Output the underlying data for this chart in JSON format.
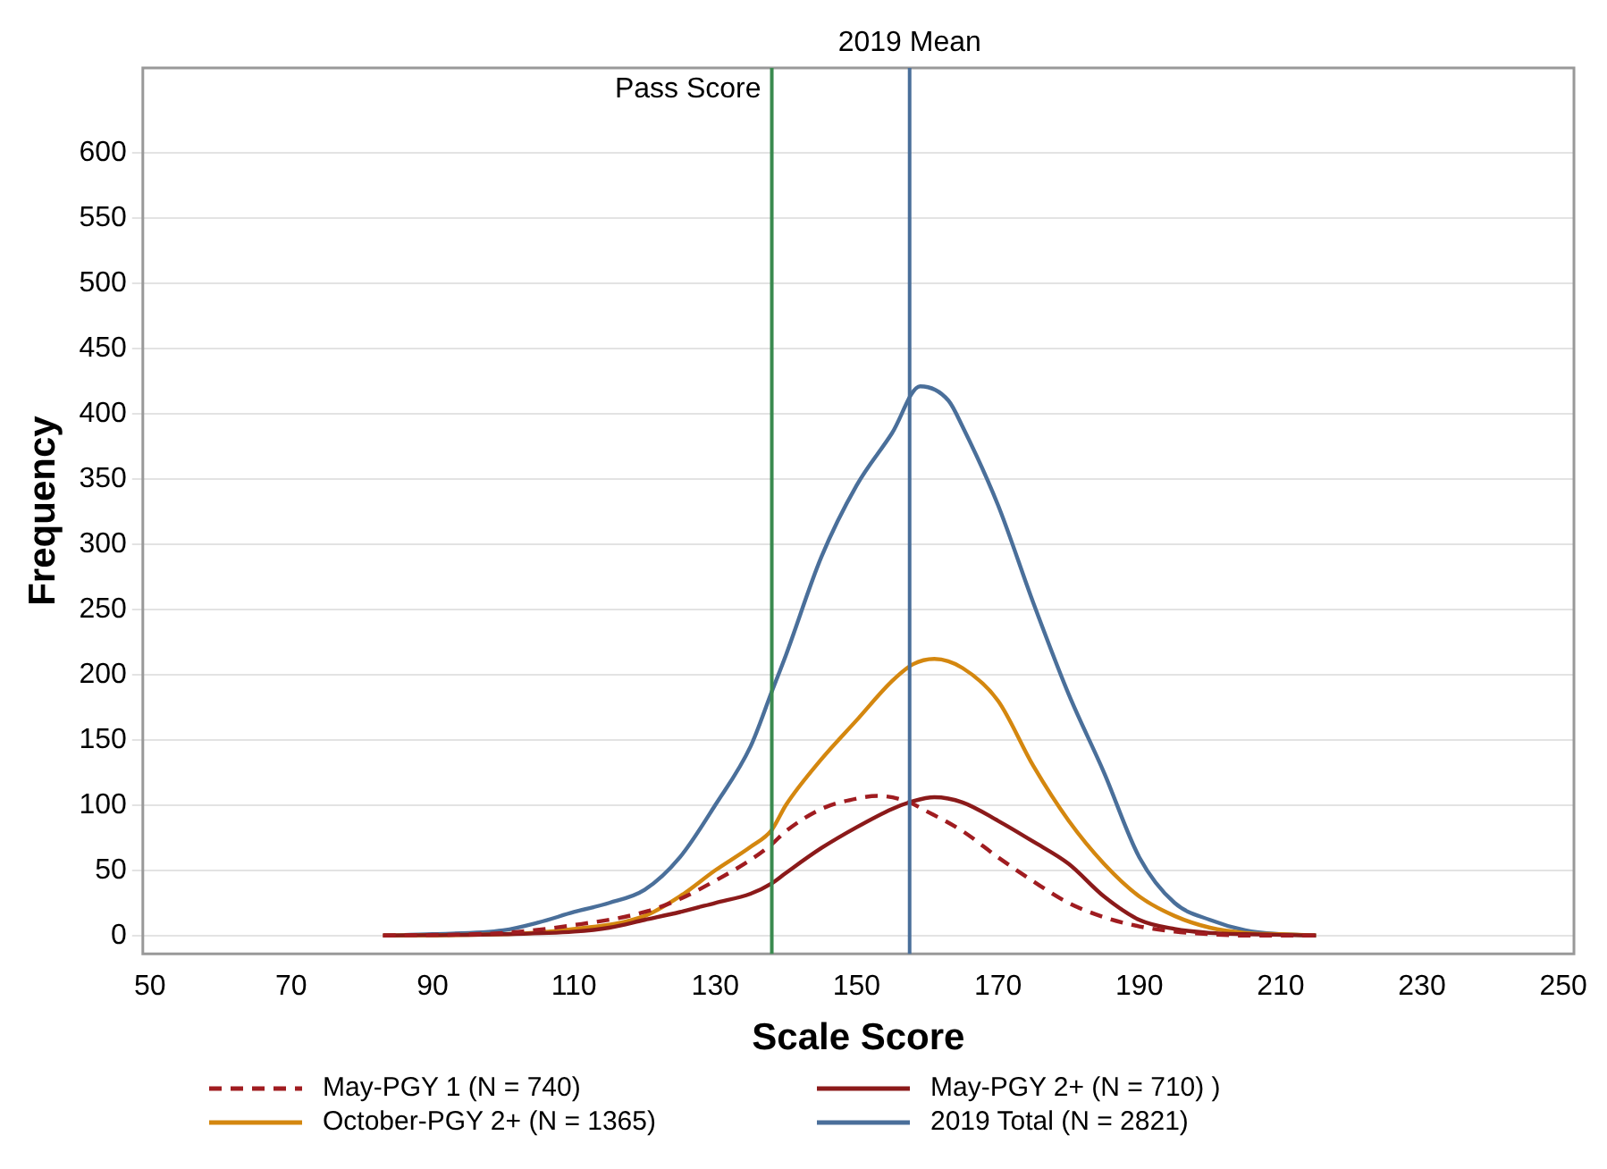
{
  "chart_data": {
    "type": "line",
    "xlabel": "Scale Score",
    "ylabel": "Frequency",
    "xlim": [
      49,
      251.5
    ],
    "ylim": [
      -14,
      665
    ],
    "xticks": [
      50,
      70,
      90,
      110,
      130,
      150,
      170,
      190,
      210,
      230,
      250
    ],
    "yticks": [
      0,
      50,
      100,
      150,
      200,
      250,
      300,
      350,
      400,
      450,
      500,
      550,
      600
    ],
    "grid": "y",
    "legend": "bottom",
    "marker": "none",
    "ref_lines": [
      {
        "axis": "x",
        "value": 138,
        "label": "Pass Score",
        "color": "#3a8a4f"
      },
      {
        "axis": "x",
        "value": 157.5,
        "label": "2019 Mean",
        "color": "#4a6f9a"
      }
    ],
    "series": [
      {
        "name": "May-PGY 1 (N = 740)",
        "color": "#a01c20",
        "line_style": "dashed",
        "x": [
          83,
          100,
          110,
          120,
          125,
          130,
          135,
          138,
          140,
          145,
          150,
          153,
          157,
          160,
          165,
          170,
          176,
          180,
          185,
          190,
          195,
          200,
          205,
          215
        ],
        "values": [
          0,
          2,
          8,
          18,
          28,
          42,
          58,
          70,
          80,
          97,
          105,
          107,
          103,
          95,
          80,
          60,
          38,
          25,
          14,
          7,
          3,
          1,
          0,
          0
        ]
      },
      {
        "name": "May-PGY 2+ (N = 710) )",
        "color": "#8b1a1a",
        "line_style": "solid",
        "x": [
          83,
          100,
          110,
          115,
          120,
          125,
          130,
          135,
          138,
          140,
          145,
          150,
          155,
          158,
          161,
          165,
          170,
          175,
          180,
          185,
          190,
          195,
          200,
          205,
          215
        ],
        "values": [
          0,
          1,
          3,
          6,
          12,
          18,
          25,
          32,
          40,
          48,
          67,
          83,
          97,
          103,
          106,
          102,
          88,
          72,
          55,
          30,
          12,
          5,
          2,
          1,
          0
        ]
      },
      {
        "name": "October-PGY 2+ (N = 1365)",
        "color": "#d4870f",
        "line_style": "solid",
        "x": [
          83,
          100,
          110,
          120,
          125,
          130,
          135,
          138,
          140,
          145,
          150,
          155,
          158,
          161,
          165,
          170,
          175,
          180,
          185,
          190,
          195,
          200,
          205,
          210,
          215
        ],
        "values": [
          0,
          1,
          5,
          15,
          30,
          50,
          68,
          81,
          100,
          135,
          165,
          195,
          208,
          212,
          205,
          180,
          130,
          88,
          55,
          30,
          15,
          6,
          2,
          1,
          0
        ]
      },
      {
        "name": "2019 Total (N = 2821)",
        "color": "#4a6f9a",
        "line_style": "solid",
        "x": [
          83,
          90,
          100,
          105,
          110,
          115,
          120,
          125,
          130,
          135,
          138,
          140,
          145,
          150,
          155,
          159,
          163,
          165,
          170,
          175,
          180,
          185,
          190,
          195,
          200,
          205,
          210,
          215
        ],
        "values": [
          0,
          1,
          4,
          10,
          18,
          25,
          35,
          60,
          100,
          145,
          187,
          215,
          290,
          345,
          385,
          421,
          410,
          390,
          330,
          255,
          185,
          125,
          60,
          25,
          12,
          4,
          1,
          0
        ]
      }
    ]
  }
}
